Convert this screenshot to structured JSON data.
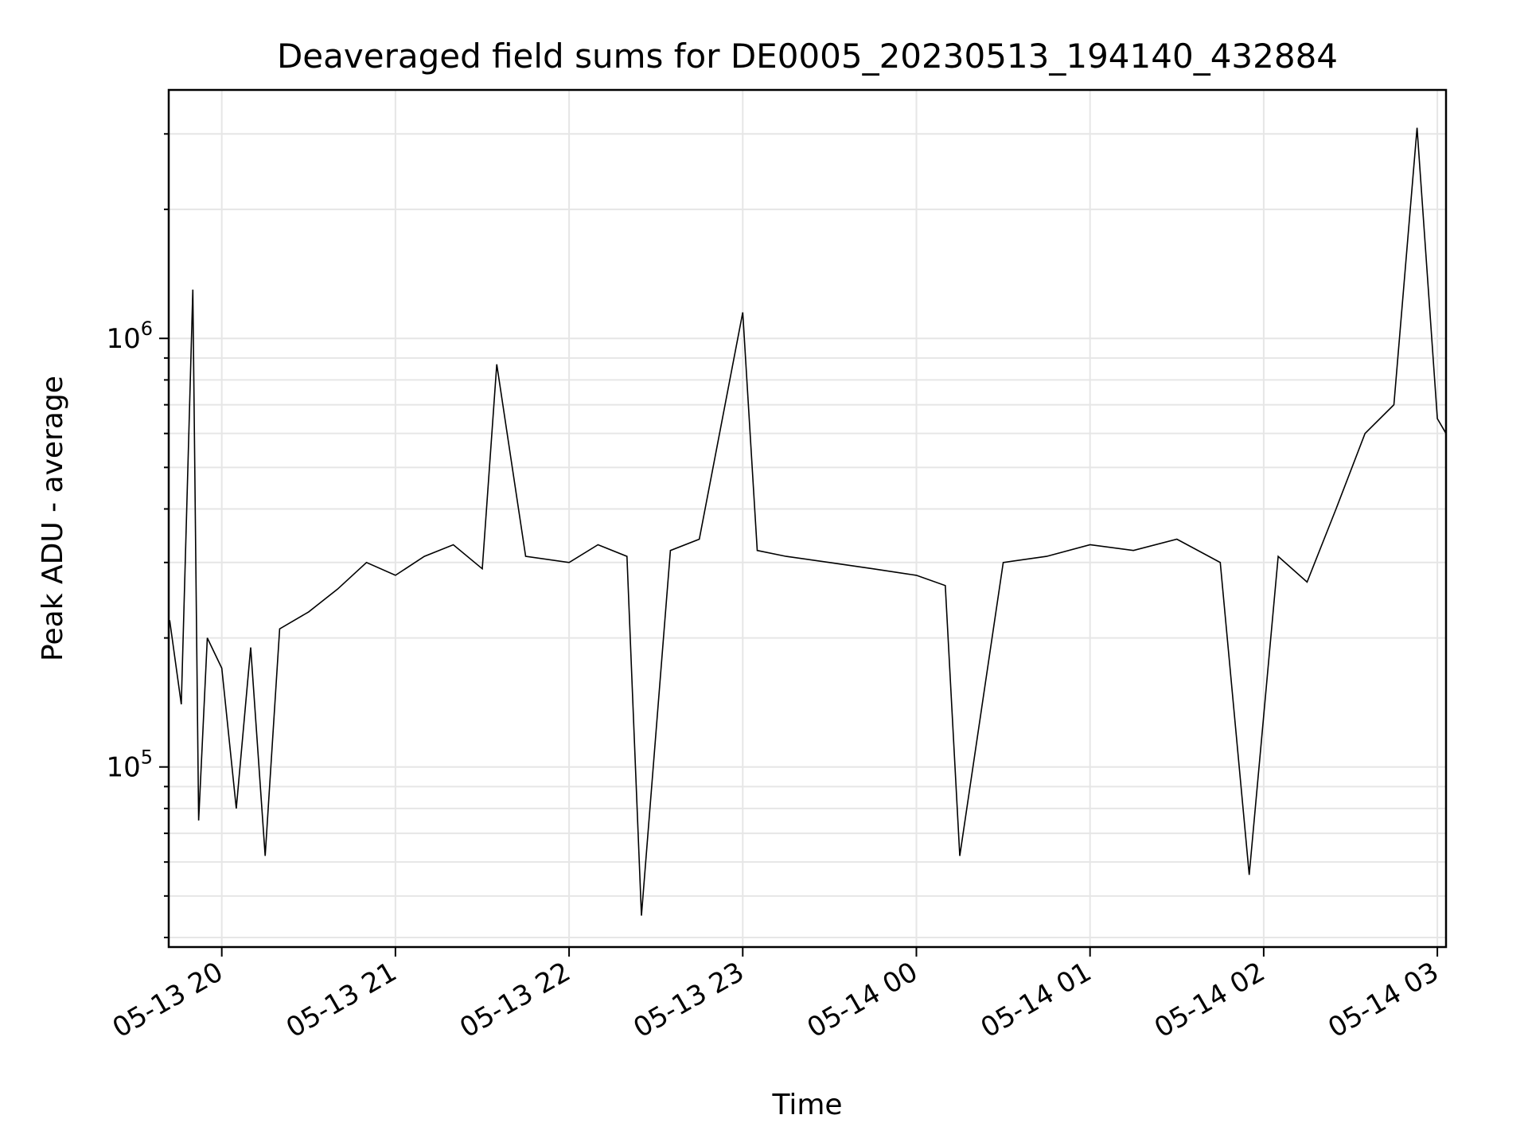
{
  "chart_data": {
    "type": "line",
    "title": "Deaveraged field sums for DE0005_20230513_194140_432884",
    "xlabel": "Time",
    "ylabel": "Peak ADU - average",
    "yscale": "log",
    "ylim": [
      38000,
      3800000
    ],
    "xlim": [
      "05-13 19:41:40",
      "05-14 03:03:00"
    ],
    "grid": true,
    "line_color": "#000000",
    "grid_color": "#e6e6e6",
    "x_ticks": [
      "05-13 20",
      "05-13 21",
      "05-13 22",
      "05-13 23",
      "05-14 00",
      "05-14 01",
      "05-14 02",
      "05-14 03"
    ],
    "y_ticks": [
      {
        "base": "10",
        "exp": "5",
        "value": 100000
      },
      {
        "base": "10",
        "exp": "6",
        "value": 1000000
      }
    ],
    "series": [
      {
        "points": [
          [
            "05-13 19:42",
            220000
          ],
          [
            "05-13 19:46",
            140000
          ],
          [
            "05-13 19:50",
            1300000
          ],
          [
            "05-13 19:52",
            75000
          ],
          [
            "05-13 19:55",
            200000
          ],
          [
            "05-13 20:00",
            170000
          ],
          [
            "05-13 20:05",
            80000
          ],
          [
            "05-13 20:10",
            190000
          ],
          [
            "05-13 20:15",
            62000
          ],
          [
            "05-13 20:20",
            210000
          ],
          [
            "05-13 20:30",
            230000
          ],
          [
            "05-13 20:40",
            260000
          ],
          [
            "05-13 20:50",
            300000
          ],
          [
            "05-13 21:00",
            280000
          ],
          [
            "05-13 21:10",
            310000
          ],
          [
            "05-13 21:20",
            330000
          ],
          [
            "05-13 21:30",
            290000
          ],
          [
            "05-13 21:35",
            870000
          ],
          [
            "05-13 21:45",
            310000
          ],
          [
            "05-13 22:00",
            300000
          ],
          [
            "05-13 22:10",
            330000
          ],
          [
            "05-13 22:20",
            310000
          ],
          [
            "05-13 22:25",
            45000
          ],
          [
            "05-13 22:35",
            320000
          ],
          [
            "05-13 22:45",
            340000
          ],
          [
            "05-13 23:00",
            1150000
          ],
          [
            "05-13 23:05",
            320000
          ],
          [
            "05-13 23:15",
            310000
          ],
          [
            "05-13 23:30",
            300000
          ],
          [
            "05-13 23:45",
            290000
          ],
          [
            "05-14 00:00",
            280000
          ],
          [
            "05-14 00:10",
            265000
          ],
          [
            "05-14 00:15",
            62000
          ],
          [
            "05-14 00:30",
            300000
          ],
          [
            "05-14 00:45",
            310000
          ],
          [
            "05-14 01:00",
            330000
          ],
          [
            "05-14 01:15",
            320000
          ],
          [
            "05-14 01:30",
            340000
          ],
          [
            "05-14 01:45",
            300000
          ],
          [
            "05-14 01:55",
            56000
          ],
          [
            "05-14 02:05",
            310000
          ],
          [
            "05-14 02:15",
            270000
          ],
          [
            "05-14 02:25",
            400000
          ],
          [
            "05-14 02:35",
            600000
          ],
          [
            "05-14 02:45",
            700000
          ],
          [
            "05-14 02:53",
            3100000
          ],
          [
            "05-14 03:00",
            650000
          ],
          [
            "05-14 03:03",
            600000
          ]
        ]
      }
    ]
  }
}
